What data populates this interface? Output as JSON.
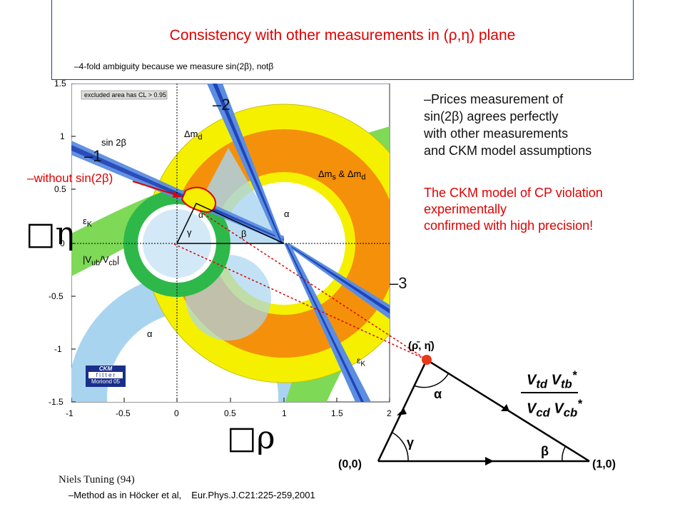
{
  "header": {
    "title": "Consistency with other measurements in (ρ,η) plane",
    "subnote": "–4-fold ambiguity because we measure sin(2β), notβ"
  },
  "plot": {
    "legend_note": "excluded area has CL > 0.95",
    "x_ticks": [
      "-1",
      "-0.5",
      "0",
      "0.5",
      "1",
      "1.5",
      "2"
    ],
    "y_ticks": [
      "1.5",
      "1",
      "0.5",
      "0",
      "-0.5",
      "-1",
      "-1.5"
    ],
    "region_labels": {
      "sin2b": "sin 2β",
      "dmd": "Δm",
      "dmd_sub": "d",
      "dms": "Δm",
      "dms_sub": "s",
      "amp": " & Δm",
      "eps_k": "ε",
      "eps_k_sub": "K",
      "vub": "|V",
      "vub_mid": "ub",
      "vub_rest": "/V",
      "vub_end": "cb",
      "vub_close": "|",
      "alpha1": "α",
      "alpha2": "α",
      "alpha3": "α",
      "beta1": "β",
      "gamma1": "γ"
    },
    "ckm_logo": {
      "line1": "CKM",
      "line2": "f i t t e r",
      "line3": "Moriond 05"
    },
    "markers": {
      "m1": "–1",
      "m2": "–2",
      "m3": "–3",
      "without": "–without sin(2β)"
    },
    "axis": {
      "y_symbol": "η",
      "x_symbol": "ρ",
      "box_glyph": "□"
    }
  },
  "triangle": {
    "apex": "(ρ̄, η̄)",
    "origin": "(0,0)",
    "right": "(1,0)",
    "alpha": "α",
    "beta": "β",
    "gamma": "γ",
    "frac_top_a": "V",
    "frac_top_a_sub": "td",
    "frac_top_b": "V",
    "frac_top_b_sub": "tb",
    "frac_bot_a": "V",
    "frac_bot_a_sub": "cd",
    "frac_bot_b": "V",
    "frac_bot_b_sub": "cb",
    "star": "*"
  },
  "right_text": {
    "line1": "–Prices measurement of",
    "line2": "sin(2β) agrees perfectly",
    "line3": "with other measurements",
    "line4": "and CKM model assumptions",
    "red1": "The CKM model of CP violation",
    "red2": "experimentally",
    "red3": "confirmed with high precision!"
  },
  "footer": {
    "author": "Niels Tuning (94)",
    "method": "–Method as in Höcker et al,",
    "ref": "Eur.Phys.J.C21:225-259,2001"
  },
  "colors": {
    "title_red": "#e00000",
    "green": "#7ed957",
    "dark_green": "#2eb84a",
    "yellow": "#f5f000",
    "orange": "#f5900a",
    "light_blue": "#a9d4f0",
    "blue_band": "#3a6fd8",
    "red_dot": "#e8391a"
  }
}
